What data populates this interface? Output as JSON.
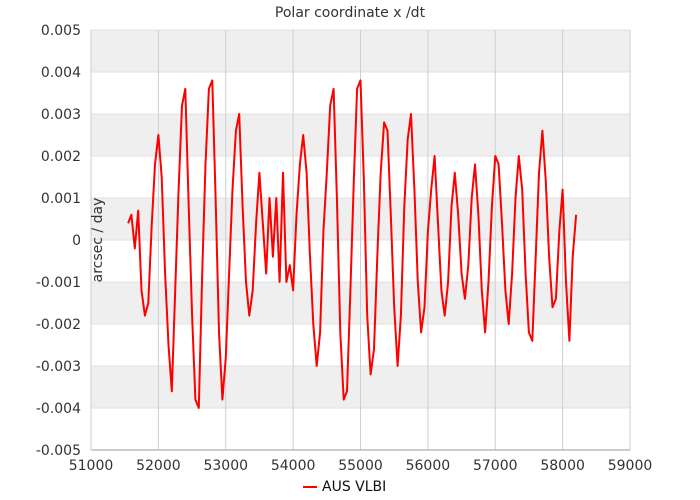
{
  "chart_data": {
    "type": "line",
    "title": "Polar coordinate x /dt",
    "xlabel": "",
    "ylabel": "arcsec / day",
    "xlim": [
      51000,
      59000
    ],
    "ylim": [
      -0.005,
      0.005
    ],
    "x_ticks": [
      51000,
      52000,
      53000,
      54000,
      55000,
      56000,
      57000,
      58000,
      59000
    ],
    "y_ticks": [
      -0.005,
      -0.004,
      -0.003,
      -0.002,
      -0.001,
      0,
      0.001,
      0.002,
      0.003,
      0.004,
      0.005
    ],
    "x_tick_labels": [
      "51000",
      "52000",
      "53000",
      "54000",
      "55000",
      "56000",
      "57000",
      "58000",
      "59000"
    ],
    "y_tick_labels": [
      "-0.005",
      "-0.004",
      "-0.003",
      "-0.002",
      "-0.001",
      "0",
      "0.001",
      "0.002",
      "0.003",
      "0.004",
      "0.005"
    ],
    "grid": true,
    "legend_position": "bottom-center",
    "series": [
      {
        "name": "AUS VLBI",
        "color": "#ff0000",
        "points": [
          [
            51550,
            0.0004
          ],
          [
            51600,
            0.0006
          ],
          [
            51650,
            -0.0002
          ],
          [
            51700,
            0.0007
          ],
          [
            51750,
            -0.0012
          ],
          [
            51800,
            -0.0018
          ],
          [
            51850,
            -0.0015
          ],
          [
            51900,
            0.0003
          ],
          [
            51950,
            0.0018
          ],
          [
            52000,
            0.0025
          ],
          [
            52050,
            0.0015
          ],
          [
            52100,
            -0.0008
          ],
          [
            52150,
            -0.0025
          ],
          [
            52200,
            -0.0036
          ],
          [
            52250,
            -0.0012
          ],
          [
            52300,
            0.0012
          ],
          [
            52350,
            0.0032
          ],
          [
            52400,
            0.0036
          ],
          [
            52450,
            0.0008
          ],
          [
            52500,
            -0.0018
          ],
          [
            52550,
            -0.0038
          ],
          [
            52600,
            -0.004
          ],
          [
            52650,
            -0.0008
          ],
          [
            52700,
            0.0018
          ],
          [
            52750,
            0.0036
          ],
          [
            52800,
            0.0038
          ],
          [
            52850,
            0.001
          ],
          [
            52900,
            -0.0022
          ],
          [
            52950,
            -0.0038
          ],
          [
            53000,
            -0.0028
          ],
          [
            53050,
            -0.0008
          ],
          [
            53100,
            0.0012
          ],
          [
            53150,
            0.0026
          ],
          [
            53200,
            0.003
          ],
          [
            53250,
            0.0008
          ],
          [
            53300,
            -0.001
          ],
          [
            53350,
            -0.0018
          ],
          [
            53400,
            -0.0012
          ],
          [
            53450,
            0.0004
          ],
          [
            53500,
            0.0016
          ],
          [
            53550,
            0.0004
          ],
          [
            53600,
            -0.0008
          ],
          [
            53650,
            0.001
          ],
          [
            53700,
            -0.0004
          ],
          [
            53750,
            0.001
          ],
          [
            53800,
            -0.001
          ],
          [
            53850,
            0.0016
          ],
          [
            53900,
            -0.001
          ],
          [
            53950,
            -0.0006
          ],
          [
            54000,
            -0.0012
          ],
          [
            54050,
            0.0006
          ],
          [
            54100,
            0.0018
          ],
          [
            54150,
            0.0025
          ],
          [
            54200,
            0.0016
          ],
          [
            54250,
            -0.0004
          ],
          [
            54300,
            -0.002
          ],
          [
            54350,
            -0.003
          ],
          [
            54400,
            -0.0022
          ],
          [
            54450,
            0.0002
          ],
          [
            54500,
            0.0016
          ],
          [
            54550,
            0.0032
          ],
          [
            54600,
            0.0036
          ],
          [
            54650,
            0.001
          ],
          [
            54700,
            -0.0022
          ],
          [
            54750,
            -0.0038
          ],
          [
            54800,
            -0.0036
          ],
          [
            54850,
            -0.0012
          ],
          [
            54900,
            0.0014
          ],
          [
            54950,
            0.0036
          ],
          [
            55000,
            0.0038
          ],
          [
            55050,
            0.0014
          ],
          [
            55100,
            -0.0018
          ],
          [
            55150,
            -0.0032
          ],
          [
            55200,
            -0.0026
          ],
          [
            55250,
            -0.0004
          ],
          [
            55300,
            0.0016
          ],
          [
            55350,
            0.0028
          ],
          [
            55400,
            0.0026
          ],
          [
            55450,
            0.0006
          ],
          [
            55500,
            -0.0016
          ],
          [
            55550,
            -0.003
          ],
          [
            55600,
            -0.0018
          ],
          [
            55650,
            0.0008
          ],
          [
            55700,
            0.0024
          ],
          [
            55750,
            0.003
          ],
          [
            55800,
            0.0012
          ],
          [
            55850,
            -0.001
          ],
          [
            55900,
            -0.0022
          ],
          [
            55950,
            -0.0016
          ],
          [
            56000,
            0.0002
          ],
          [
            56050,
            0.0012
          ],
          [
            56100,
            0.002
          ],
          [
            56150,
            0.0004
          ],
          [
            56200,
            -0.0012
          ],
          [
            56250,
            -0.0018
          ],
          [
            56300,
            -0.001
          ],
          [
            56350,
            0.0008
          ],
          [
            56400,
            0.0016
          ],
          [
            56450,
            0.0006
          ],
          [
            56500,
            -0.0008
          ],
          [
            56550,
            -0.0014
          ],
          [
            56600,
            -0.0006
          ],
          [
            56650,
            0.001
          ],
          [
            56700,
            0.0018
          ],
          [
            56750,
            0.0006
          ],
          [
            56800,
            -0.0012
          ],
          [
            56850,
            -0.0022
          ],
          [
            56900,
            -0.001
          ],
          [
            56950,
            0.0008
          ],
          [
            57000,
            0.002
          ],
          [
            57050,
            0.0018
          ],
          [
            57100,
            0.0004
          ],
          [
            57150,
            -0.0012
          ],
          [
            57200,
            -0.002
          ],
          [
            57250,
            -0.0008
          ],
          [
            57300,
            0.001
          ],
          [
            57350,
            0.002
          ],
          [
            57400,
            0.0012
          ],
          [
            57450,
            -0.0008
          ],
          [
            57500,
            -0.0022
          ],
          [
            57550,
            -0.0024
          ],
          [
            57600,
            -0.0004
          ],
          [
            57650,
            0.0016
          ],
          [
            57700,
            0.0026
          ],
          [
            57750,
            0.0014
          ],
          [
            57800,
            -0.0004
          ],
          [
            57850,
            -0.0016
          ],
          [
            57900,
            -0.0014
          ],
          [
            57950,
            0.0002
          ],
          [
            58000,
            0.0012
          ],
          [
            58050,
            -0.001
          ],
          [
            58100,
            -0.0024
          ],
          [
            58150,
            -0.0004
          ],
          [
            58200,
            0.0006
          ]
        ]
      }
    ]
  }
}
